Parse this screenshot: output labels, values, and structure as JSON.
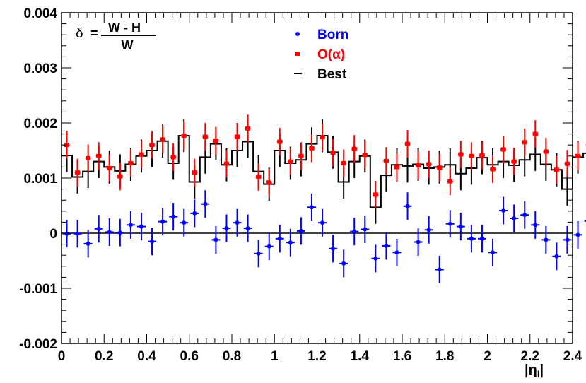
{
  "chart_data": {
    "type": "scatter",
    "xlabel": "|η",
    "xlabel_sub": "l",
    "xlabel_close": "|",
    "formula": {
      "lhs": "δ",
      "eq": "=",
      "numerator": "W - H",
      "denominator": "W"
    },
    "xlim": [
      0,
      2.4
    ],
    "ylim": [
      -0.002,
      0.004
    ],
    "x_ticks": [
      "0",
      "0.2",
      "0.4",
      "0.6",
      "0.8",
      "1",
      "1.2",
      "1.4",
      "1.6",
      "1.8",
      "2",
      "2.2",
      "2.4"
    ],
    "y_ticks": [
      "-0.002",
      "-0.001",
      "0",
      "0.001",
      "0.002",
      "0.003",
      "0.004"
    ],
    "legend_position": "top-center",
    "bin_width": 0.05,
    "colors": {
      "born": "#0000ff",
      "oalpha": "#ff0000",
      "best": "#000000"
    },
    "series": [
      {
        "name": "Born",
        "marker": "circle",
        "y": [
          -1e-05,
          -1e-05,
          -0.00019,
          8e-05,
          2e-05,
          1e-05,
          0.00015,
          0.00012,
          -0.00015,
          0.00021,
          0.0003,
          0.00019,
          0.00036,
          0.00053,
          -0.00012,
          9e-05,
          0.00019,
          9e-05,
          -0.00037,
          -0.00024,
          -0.0001,
          -0.00017,
          4e-05,
          0.00047,
          0.00019,
          -0.00028,
          -0.00055,
          3e-05,
          7e-05,
          -0.00046,
          -0.00023,
          -0.00035,
          0.00049,
          -0.00016,
          6e-05,
          -0.00066,
          0.00017,
          0.00012,
          -0.0001,
          -0.0001,
          -0.00035,
          0.00041,
          0.00027,
          0.00033,
          0.00015,
          -0.00012,
          -0.00042,
          -0.00012,
          -3e-05,
          0.00022
        ],
        "err": [
          0.00025,
          0.00025,
          0.00025,
          0.00025,
          0.00025,
          0.00025,
          0.00025,
          0.00025,
          0.00025,
          0.00025,
          0.00025,
          0.00025,
          0.00025,
          0.00025,
          0.00025,
          0.00025,
          0.00025,
          0.00025,
          0.00025,
          0.00025,
          0.00025,
          0.00025,
          0.00025,
          0.00025,
          0.00025,
          0.00025,
          0.00025,
          0.00025,
          0.00025,
          0.00025,
          0.00025,
          0.00025,
          0.00025,
          0.00025,
          0.00025,
          0.00025,
          0.00025,
          0.00025,
          0.00025,
          0.00025,
          0.00025,
          0.00025,
          0.00025,
          0.00025,
          0.00025,
          0.00025,
          0.00025,
          0.00025,
          0.00025,
          0.00025
        ]
      },
      {
        "name": "O(α)",
        "marker": "square",
        "y": [
          0.0016,
          0.0011,
          0.00136,
          0.0014,
          0.00118,
          0.00103,
          0.00127,
          0.00143,
          0.0016,
          0.0017,
          0.00138,
          0.00177,
          0.0011,
          0.00175,
          0.00168,
          0.00126,
          0.00175,
          0.0019,
          0.00102,
          0.00092,
          0.00166,
          0.0013,
          0.0014,
          0.00154,
          0.00174,
          0.00146,
          0.00127,
          0.00153,
          0.00142,
          0.0007,
          0.00131,
          0.0012,
          0.00162,
          0.00123,
          0.00125,
          0.00119,
          0.00094,
          0.00143,
          0.0014,
          0.00141,
          0.00116,
          0.00152,
          0.0013,
          0.00165,
          0.0018,
          0.00148,
          0.00115,
          0.00126,
          0.0014,
          0.0016
        ],
        "err": [
          0.00025,
          0.00025,
          0.00025,
          0.00025,
          0.00025,
          0.00025,
          0.00025,
          0.00025,
          0.00025,
          0.00025,
          0.00025,
          0.00025,
          0.00025,
          0.00025,
          0.00025,
          0.00025,
          0.00025,
          0.00025,
          0.00025,
          0.00025,
          0.00025,
          0.00025,
          0.00025,
          0.00025,
          0.00025,
          0.00025,
          0.00025,
          0.00025,
          0.00025,
          0.00025,
          0.00025,
          0.00025,
          0.00025,
          0.00025,
          0.00025,
          0.00025,
          0.00025,
          0.00025,
          0.00025,
          0.00025,
          0.00025,
          0.00025,
          0.00025,
          0.00025,
          0.00025,
          0.00025,
          0.00025,
          0.00025,
          0.00025,
          0.00025
        ]
      },
      {
        "name": "Best",
        "marker": "histogram",
        "y": [
          0.00141,
          0.00102,
          0.00112,
          0.0013,
          0.0012,
          0.00113,
          0.00125,
          0.0014,
          0.0015,
          0.00167,
          0.00127,
          0.00177,
          0.00093,
          0.00138,
          0.00162,
          0.00124,
          0.0015,
          0.00166,
          0.00112,
          0.00089,
          0.0015,
          0.00127,
          0.00133,
          0.00162,
          0.00177,
          0.00147,
          0.00093,
          0.0013,
          0.0014,
          0.00047,
          0.00105,
          0.00124,
          0.00122,
          0.00125,
          0.00118,
          0.0012,
          0.00124,
          0.00108,
          0.00118,
          0.00137,
          0.00124,
          0.0013,
          0.00123,
          0.00133,
          0.00143,
          0.00125,
          0.00115,
          0.0008,
          0.00138,
          0.00145
        ],
        "err": [
          0.0003,
          0.0003,
          0.0003,
          0.0003,
          0.0003,
          0.0003,
          0.0003,
          0.0003,
          0.0003,
          0.0003,
          0.0003,
          0.0003,
          0.0003,
          0.0003,
          0.0003,
          0.0003,
          0.0003,
          0.0003,
          0.0003,
          0.0003,
          0.0003,
          0.0003,
          0.0003,
          0.0003,
          0.0003,
          0.0003,
          0.0003,
          0.0003,
          0.0003,
          0.0003,
          0.0003,
          0.0003,
          0.0003,
          0.0003,
          0.0003,
          0.0003,
          0.0003,
          0.0003,
          0.0003,
          0.0003,
          0.0003,
          0.0003,
          0.0003,
          0.0003,
          0.0003,
          0.0003,
          0.0003,
          0.0003,
          0.0003,
          0.0003
        ]
      }
    ]
  }
}
